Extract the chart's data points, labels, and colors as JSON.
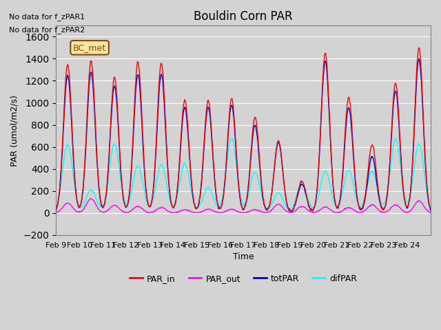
{
  "title": "Bouldin Corn PAR",
  "ylabel": "PAR (umol/m2/s)",
  "xlabel": "Time",
  "ylim": [
    -200,
    1700
  ],
  "yticks": [
    -200,
    0,
    200,
    400,
    600,
    800,
    1000,
    1200,
    1400,
    1600
  ],
  "no_data_text": [
    "No data for f_zPAR1",
    "No data for f_zPAR2"
  ],
  "bc_met_label": "BC_met",
  "date_labels": [
    "Feb 9",
    "Feb 10",
    "Feb 11",
    "Feb 12",
    "Feb 13",
    "Feb 14",
    "Feb 15",
    "Feb 16",
    "Feb 17",
    "Feb 18",
    "Feb 19",
    "Feb 20",
    "Feb 21",
    "Feb 22",
    "Feb 23",
    "Feb 24"
  ],
  "colors": {
    "PAR_in": "#ff0000",
    "PAR_out": "#ff00ff",
    "totPAR": "#0000cc",
    "difPAR": "#00ffff"
  },
  "plot_bg_color": "#d3d3d3",
  "days": 16,
  "peak_data": {
    "PAR_in": [
      1350,
      1380,
      1230,
      1370,
      1360,
      1030,
      1020,
      1040,
      870,
      660,
      290,
      1450,
      1050,
      620,
      1180,
      1500
    ],
    "totPAR": [
      1250,
      1280,
      1150,
      1260,
      1260,
      960,
      960,
      980,
      800,
      640,
      260,
      1380,
      960,
      510,
      1110,
      1400
    ],
    "difPAR": [
      620,
      210,
      630,
      430,
      440,
      450,
      230,
      680,
      370,
      180,
      270,
      380,
      390,
      380,
      670,
      630
    ],
    "PAR_out": [
      90,
      130,
      70,
      60,
      50,
      30,
      35,
      35,
      30,
      80,
      60,
      55,
      50,
      75,
      75,
      110
    ]
  }
}
